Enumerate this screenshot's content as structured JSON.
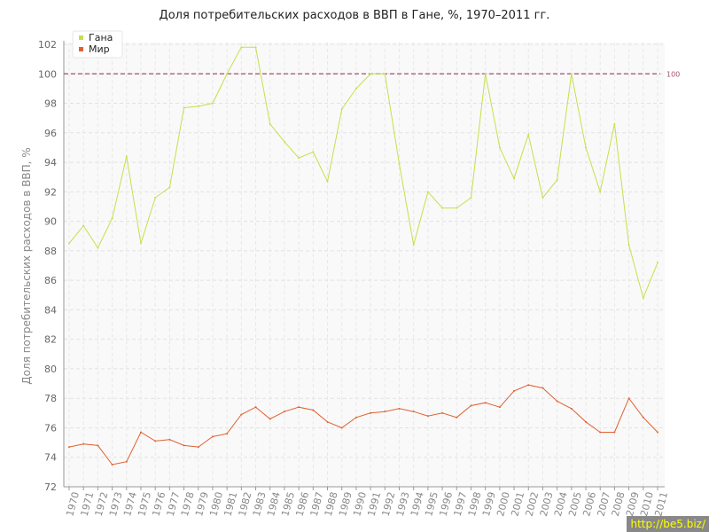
{
  "title": "Доля потребительских расходов в ВВП в Гане, %, 1970–2011 гг.",
  "watermark": "http://be5.biz/",
  "chart_data": {
    "type": "line",
    "title": "Доля потребительских расходов в ВВП в Гане, %, 1970–2011 гг.",
    "xlabel": "",
    "ylabel": "Доля потребительских расходов в ВВП, %",
    "ylim": [
      72,
      102
    ],
    "yticks": [
      72,
      74,
      76,
      78,
      80,
      82,
      84,
      86,
      88,
      90,
      92,
      94,
      96,
      98,
      100,
      102
    ],
    "grid": true,
    "legend_position": "top-left",
    "reference_line": {
      "value": 100,
      "label": "100",
      "color": "#a05070"
    },
    "x": [
      "1970",
      "1971",
      "1972",
      "1973",
      "1974",
      "1975",
      "1976",
      "1977",
      "1978",
      "1979",
      "1980",
      "1981",
      "1982",
      "1983",
      "1984",
      "1985",
      "1986",
      "1987",
      "1988",
      "1989",
      "1990",
      "1991",
      "1992",
      "1993",
      "1994",
      "1995",
      "1996",
      "1997",
      "1998",
      "1999",
      "2000",
      "2001",
      "2002",
      "2003",
      "2004",
      "2005",
      "2006",
      "2007",
      "2008",
      "2009",
      "2010",
      "2011"
    ],
    "series": [
      {
        "name": "Гана",
        "color": "#c5e04a",
        "values": [
          88.5,
          89.7,
          88.2,
          90.2,
          94.4,
          88.5,
          91.6,
          92.3,
          97.7,
          97.8,
          98.0,
          100.0,
          101.8,
          101.8,
          96.6,
          95.4,
          94.3,
          94.7,
          92.7,
          97.6,
          99.0,
          100.0,
          100.0,
          93.9,
          88.4,
          92.0,
          90.9,
          90.9,
          91.6,
          100.0,
          95.0,
          92.9,
          95.9,
          91.6,
          92.8,
          100.0,
          95.0,
          92.0,
          96.6,
          88.4,
          84.8,
          87.2
        ]
      },
      {
        "name": "Мир",
        "color": "#e06030",
        "values": [
          74.7,
          74.9,
          74.8,
          73.5,
          73.7,
          75.7,
          75.1,
          75.2,
          74.8,
          74.7,
          75.4,
          75.6,
          76.9,
          77.4,
          76.6,
          77.1,
          77.4,
          77.2,
          76.4,
          76.0,
          76.7,
          77.0,
          77.1,
          77.3,
          77.1,
          76.8,
          77.0,
          76.7,
          77.5,
          77.7,
          77.4,
          78.5,
          78.9,
          78.7,
          77.8,
          77.3,
          76.4,
          75.7,
          75.7,
          78.0,
          76.7,
          75.7
        ]
      }
    ]
  }
}
